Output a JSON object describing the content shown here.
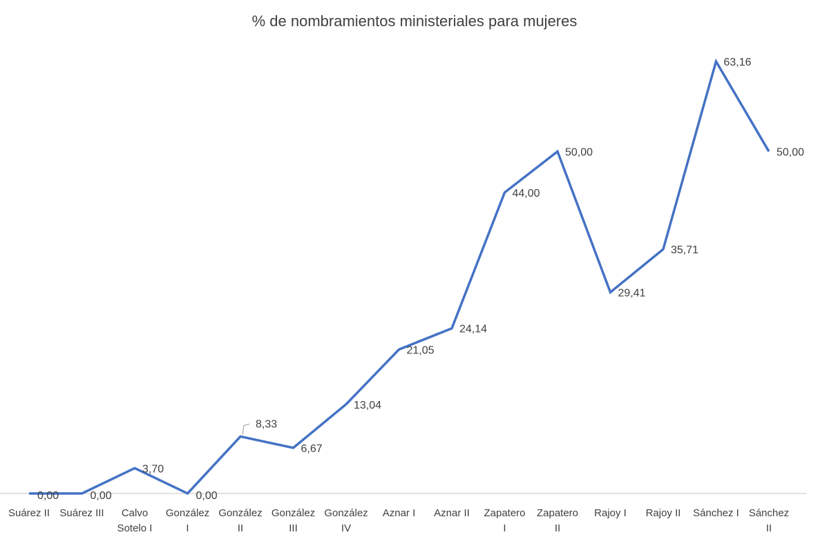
{
  "chart_data": {
    "type": "line",
    "title": "% de nombramientos ministeriales para mujeres",
    "xlabel": "",
    "ylabel": "",
    "ylim": [
      0,
      70
    ],
    "grid": false,
    "legend": "none",
    "categories": [
      [
        "Suárez II"
      ],
      [
        "Suárez III"
      ],
      [
        "Calvo",
        "Sotelo I"
      ],
      [
        "González",
        "I"
      ],
      [
        "González",
        "II"
      ],
      [
        "González",
        "III"
      ],
      [
        "González",
        "IV"
      ],
      [
        "Aznar I"
      ],
      [
        "Aznar II"
      ],
      [
        "Zapatero",
        "I"
      ],
      [
        "Zapatero",
        "II"
      ],
      [
        "Rajoy I"
      ],
      [
        "Rajoy II"
      ],
      [
        "Sánchez I"
      ],
      [
        "Sánchez",
        "II"
      ]
    ],
    "series": [
      {
        "values": [
          0.0,
          0.0,
          3.7,
          0.0,
          8.33,
          6.67,
          13.04,
          21.05,
          24.14,
          44.0,
          50.0,
          29.41,
          35.71,
          63.16,
          50.0
        ],
        "data_labels": [
          "0,00",
          "0,00",
          "3,70",
          "0,00",
          "8,33",
          "6,67",
          "13,04",
          "21,05",
          "24,14",
          "44,00",
          "50,00",
          "29,41",
          "35,71",
          "63,16",
          "50,00"
        ],
        "color": "#4472c4"
      }
    ],
    "colors": {
      "line": "#4472c4",
      "axis": "#d9d9d9",
      "text": "#404040",
      "leader": "#a6a6a6"
    }
  }
}
